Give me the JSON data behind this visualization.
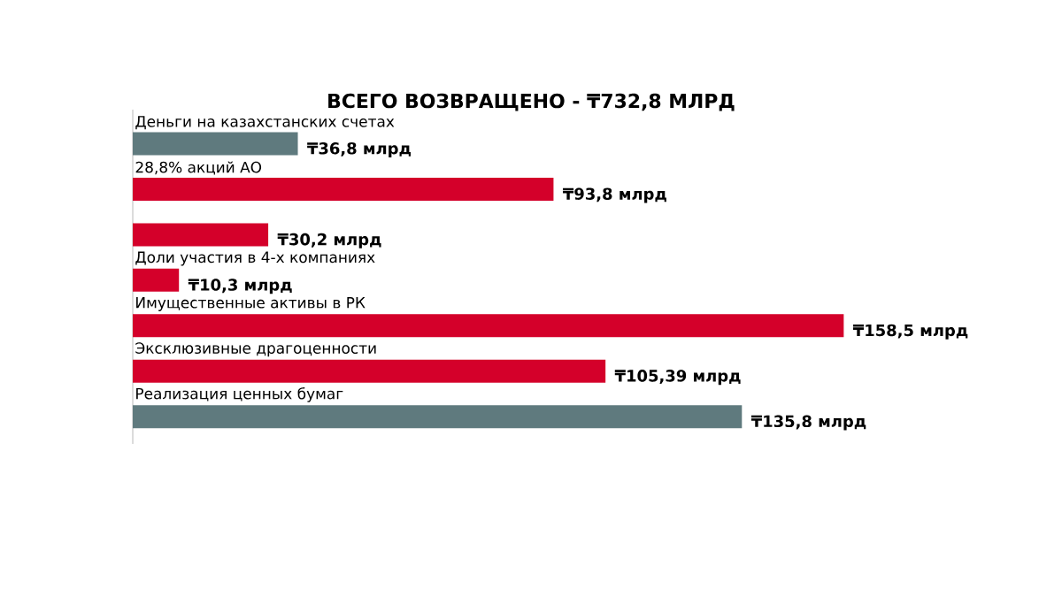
{
  "chart_data": {
    "type": "bar",
    "orientation": "horizontal",
    "title": "ВСЕГО ВОЗВРАЩЕНО - ₸732,8 МЛРД",
    "categories": [
      "Деньги на казахстанских счетах",
      "28,8% акций АО",
      null,
      "Доли участия в 4-х компаниях",
      "Имущественные активы в РК",
      "Эксклюзивные драгоценности",
      "Реализация ценных бумаг"
    ],
    "values": [
      36.8,
      93.8,
      30.2,
      10.3,
      158.5,
      105.39,
      135.8
    ],
    "colors": [
      "#5f7a7e",
      "#d4002a",
      "#d4002a",
      "#d4002a",
      "#d4002a",
      "#d4002a",
      "#5f7a7e"
    ],
    "value_labels": [
      "₸36,8 млрд",
      "₸93,8 млрд",
      "₸30,2 млрд",
      "₸10,3 млрд",
      "₸158,5 млрд",
      "₸105,39 млрд",
      "₸135,8 млрд"
    ]
  }
}
